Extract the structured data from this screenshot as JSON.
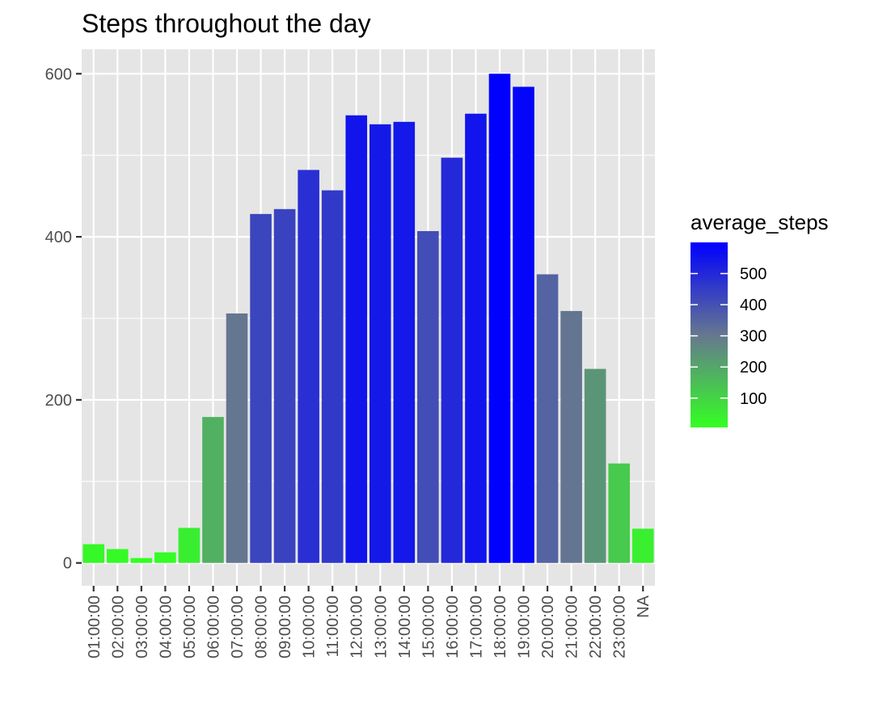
{
  "chart_data": {
    "type": "bar",
    "title": "Steps throughout the day",
    "xlabel": "",
    "ylabel": "",
    "categories": [
      "01:00:00",
      "02:00:00",
      "03:00:00",
      "04:00:00",
      "05:00:00",
      "06:00:00",
      "07:00:00",
      "08:00:00",
      "09:00:00",
      "10:00:00",
      "11:00:00",
      "12:00:00",
      "13:00:00",
      "14:00:00",
      "15:00:00",
      "16:00:00",
      "17:00:00",
      "18:00:00",
      "19:00:00",
      "20:00:00",
      "21:00:00",
      "22:00:00",
      "23:00:00",
      "NA"
    ],
    "values": [
      23,
      17,
      6,
      13,
      43,
      179,
      306,
      428,
      434,
      482,
      457,
      549,
      538,
      541,
      407,
      497,
      551,
      600,
      584,
      354,
      309,
      238,
      122,
      42
    ],
    "ylim": [
      -28,
      630
    ],
    "yticks": [
      0,
      200,
      400,
      600
    ],
    "ytick_labels": [
      "0",
      "200",
      "400",
      "600"
    ],
    "grid": true,
    "legend": {
      "title": "average_steps",
      "position": "right",
      "color_low": "#33ff22",
      "color_mid": "#66778f",
      "color_high": "#0000ff",
      "range": [
        6,
        600
      ],
      "ticks": [
        100,
        200,
        300,
        400,
        500
      ],
      "tick_labels": [
        "100",
        "200",
        "300",
        "400",
        "500"
      ]
    }
  }
}
